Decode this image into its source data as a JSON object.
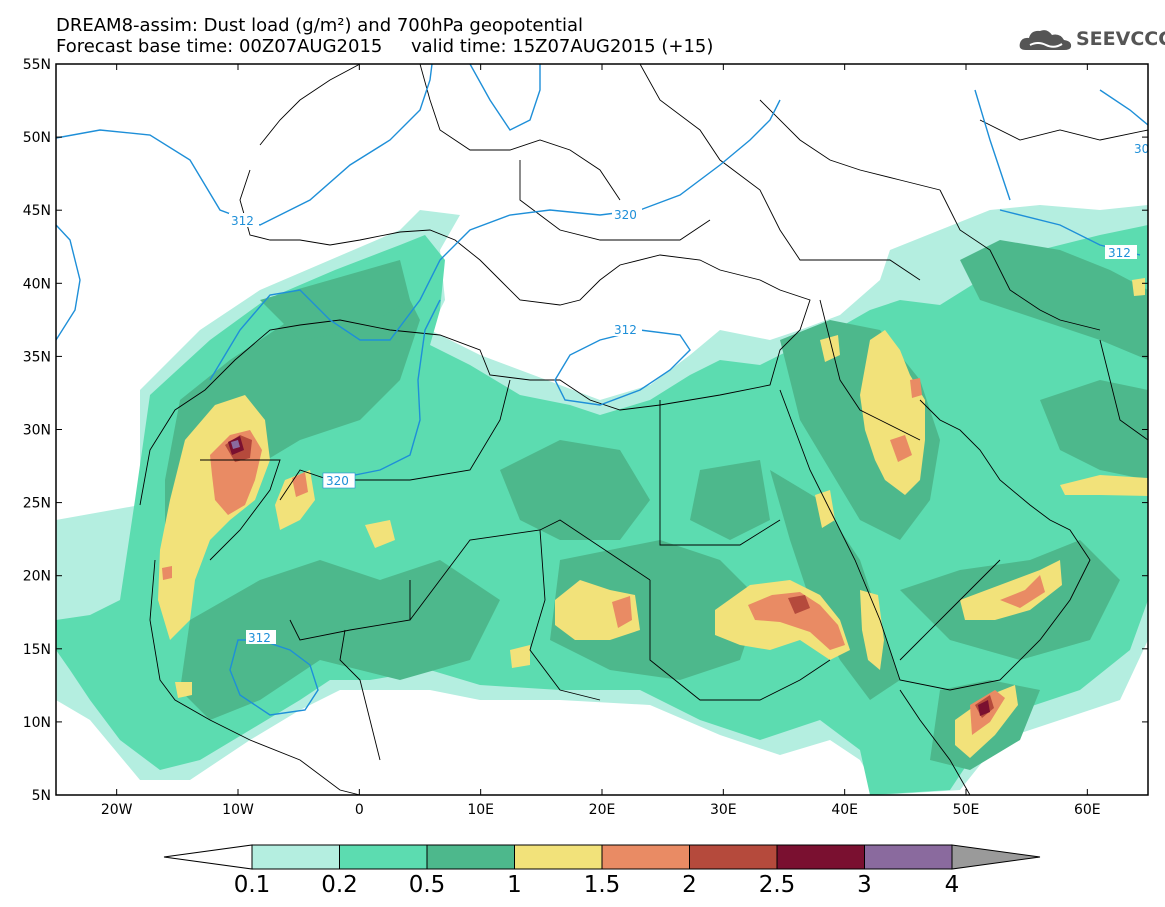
{
  "header": {
    "line1": "DREAM8-assim: Dust load (g/m²) and 700hPa geopotential",
    "line2": "Forecast base time: 00Z07AUG2015     valid time: 15Z07AUG2015 (+15)"
  },
  "logo": {
    "text": "SEEVCCC",
    "icon": "cloud-icon"
  },
  "map": {
    "lon_range": [
      -25,
      65
    ],
    "lat_range": [
      5,
      55
    ],
    "lat_ticks": [
      "5N",
      "10N",
      "15N",
      "20N",
      "25N",
      "30N",
      "35N",
      "40N",
      "45N",
      "50N",
      "55N"
    ],
    "lon_ticks": [
      "20W",
      "10W",
      "0",
      "10E",
      "20E",
      "30E",
      "40E",
      "50E",
      "60E"
    ]
  },
  "contours": {
    "color": "#1e8fd8",
    "labels": [
      "312",
      "320",
      "312",
      "320",
      "312",
      "312",
      "30"
    ]
  },
  "colorbar": {
    "tick_labels": [
      "0.1",
      "0.2",
      "0.5",
      "1",
      "1.5",
      "2",
      "2.5",
      "3",
      "4"
    ],
    "colors": [
      "#b4eee0",
      "#5cdcb0",
      "#4db88c",
      "#f2e27a",
      "#e98b64",
      "#b54a3c",
      "#7a1030",
      "#8a6a9e",
      "#9a9a9a"
    ]
  }
}
